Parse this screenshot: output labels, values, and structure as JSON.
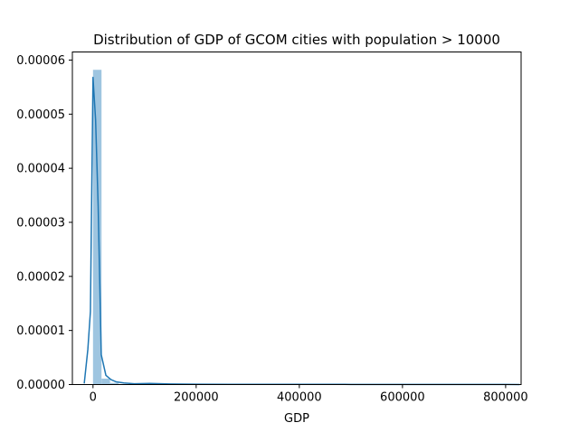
{
  "chart_data": {
    "type": "histogram",
    "title": "Distribution of GDP of GCOM cities with population > 10000",
    "xlabel": "GDP",
    "ylabel": "",
    "xlim": [
      -40000,
      830000
    ],
    "ylim": [
      0,
      6.15e-05
    ],
    "x_ticks": [
      {
        "value": 0,
        "label": "0"
      },
      {
        "value": 200000,
        "label": "200000"
      },
      {
        "value": 400000,
        "label": "400000"
      },
      {
        "value": 600000,
        "label": "600000"
      },
      {
        "value": 800000,
        "label": "800000"
      }
    ],
    "y_ticks": [
      {
        "value": 0,
        "label": "0.00000"
      },
      {
        "value": 1e-05,
        "label": "0.00001"
      },
      {
        "value": 2e-05,
        "label": "0.00002"
      },
      {
        "value": 3e-05,
        "label": "0.00003"
      },
      {
        "value": 4e-05,
        "label": "0.00004"
      },
      {
        "value": 5e-05,
        "label": "0.00005"
      },
      {
        "value": 6e-05,
        "label": "0.00006"
      }
    ],
    "bins": [
      {
        "x0": 0,
        "x1": 16500,
        "density": 5.82e-05
      },
      {
        "x0": 16500,
        "x1": 33000,
        "density": 1.1e-06
      },
      {
        "x0": 33000,
        "x1": 49500,
        "density": 3e-07
      },
      {
        "x0": 49500,
        "x1": 66000,
        "density": 1e-07
      },
      {
        "x0": 99000,
        "x1": 115500,
        "density": 5e-08
      },
      {
        "x0": 214500,
        "x1": 231000,
        "density": 3e-08
      },
      {
        "x0": 396000,
        "x1": 412500,
        "density": 2e-08
      },
      {
        "x0": 792000,
        "x1": 808500,
        "density": 2e-08
      }
    ],
    "kde": [
      [
        -17000,
        2e-07
      ],
      [
        -10000,
        6.5e-06
      ],
      [
        -5000,
        1.35e-05
      ],
      [
        0,
        5.68e-05
      ],
      [
        5000,
        4.9e-05
      ],
      [
        10000,
        3.3e-05
      ],
      [
        16000,
        5.5e-06
      ],
      [
        25000,
        1.7e-06
      ],
      [
        35000,
        9e-07
      ],
      [
        45000,
        5e-07
      ],
      [
        60000,
        3e-07
      ],
      [
        80000,
        1.5e-07
      ],
      [
        110000,
        2e-07
      ],
      [
        150000,
        1e-07
      ],
      [
        200000,
        6e-08
      ],
      [
        300000,
        4e-08
      ],
      [
        400000,
        5e-08
      ],
      [
        500000,
        3e-08
      ],
      [
        600000,
        2e-08
      ],
      [
        700000,
        2e-08
      ],
      [
        800000,
        3e-08
      ],
      [
        827000,
        1e-08
      ]
    ],
    "bar_color": "#9ec5e0",
    "line_color": "#1f77b4",
    "grid": false,
    "legend": "none"
  }
}
